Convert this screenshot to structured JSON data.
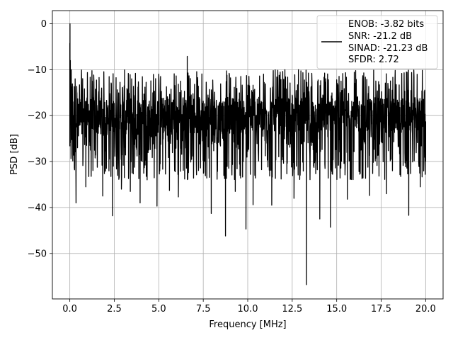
{
  "chart_data": {
    "type": "line",
    "title": "",
    "xlabel": "Frequency [MHz]",
    "ylabel": "PSD [dB]",
    "xlim": [
      -0.98,
      20.98
    ],
    "ylim": [
      -59.9,
      2.85
    ],
    "xticks": [
      0.0,
      2.5,
      5.0,
      7.5,
      10.0,
      12.5,
      15.0,
      17.5,
      20.0
    ],
    "xtick_labels": [
      "0.0",
      "2.5",
      "5.0",
      "7.5",
      "10.0",
      "12.5",
      "15.0",
      "17.5",
      "20.0"
    ],
    "yticks": [
      0,
      -10,
      -20,
      -30,
      -40,
      -50
    ],
    "ytick_labels": [
      "0",
      "−10",
      "−20",
      "−30",
      "−40",
      "−50"
    ],
    "grid": true,
    "legend_placement": "upper-right",
    "legend": [
      "ENOB: -3.82 bits",
      "SNR: -21.2 dB",
      "SINAD: -21.23 dB",
      "SFDR: 2.72"
    ],
    "series": [
      {
        "color": "#000000",
        "noise_band_db": [
          -34,
          -10
        ],
        "noise_floor_db": -20,
        "points": [
          [
            0.0,
            -4.3
          ],
          [
            0.005,
            -14.0
          ],
          [
            0.01,
            0.0
          ],
          [
            0.02,
            -12.0
          ],
          [
            0.03,
            -8.0
          ],
          [
            0.06,
            -22.0
          ],
          [
            0.08,
            -10.0
          ],
          [
            0.12,
            -18.0
          ],
          [
            0.2,
            -25.0
          ],
          [
            0.3,
            -12.0
          ],
          [
            0.35,
            -39.0
          ],
          [
            0.4,
            -15.0
          ],
          [
            0.9,
            -35.5
          ],
          [
            1.85,
            -37.5
          ],
          [
            2.4,
            -41.8
          ],
          [
            2.9,
            -36.0
          ],
          [
            3.4,
            -36.5
          ],
          [
            3.95,
            -39.0
          ],
          [
            4.9,
            -39.7
          ],
          [
            5.6,
            -36.3
          ],
          [
            6.1,
            -37.7
          ],
          [
            6.6,
            -7.1
          ],
          [
            7.95,
            -41.3
          ],
          [
            8.75,
            -46.2
          ],
          [
            9.3,
            -36.5
          ],
          [
            9.9,
            -44.7
          ],
          [
            10.3,
            -39.4
          ],
          [
            11.35,
            -39.5
          ],
          [
            12.6,
            -38.0
          ],
          [
            12.85,
            -10.0
          ],
          [
            13.3,
            -56.8
          ],
          [
            13.6,
            -10.8
          ],
          [
            14.05,
            -42.5
          ],
          [
            14.65,
            -44.3
          ],
          [
            15.6,
            -38.2
          ],
          [
            16.85,
            -37.4
          ],
          [
            17.8,
            -37.0
          ],
          [
            19.05,
            -41.7
          ],
          [
            19.7,
            -35.5
          ],
          [
            20.0,
            -30.0
          ]
        ]
      }
    ]
  }
}
